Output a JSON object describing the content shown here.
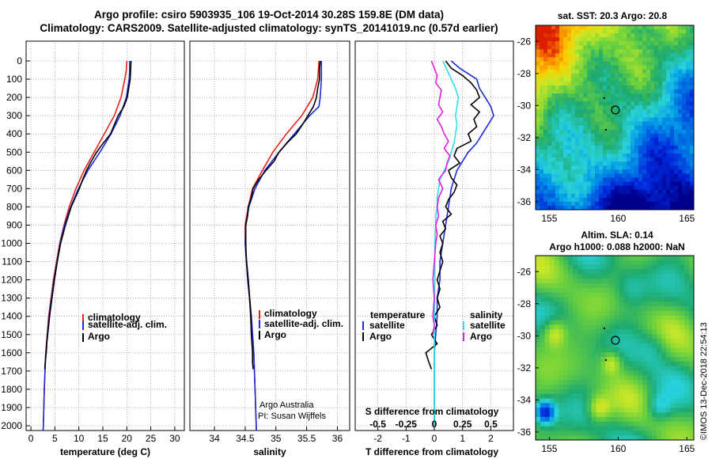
{
  "titles": {
    "line1": "Argo profile: csiro 5903935_106 19-Oct-2014 30.28S 159.8E (DM data)",
    "line2": "Climatology: CARS2009. Satellite-adjusted climatology: synTS_20141019.nc (0.57d earlier)"
  },
  "colors": {
    "climatology": "#e8221b",
    "satellite": "#1c2bd6",
    "argo": "#000000",
    "salinity_sat": "#33e0e6",
    "salinity_argo": "#e020e0"
  },
  "chart_data": [
    {
      "type": "line",
      "name": "temperature",
      "xlabel": "temperature (deg C)",
      "ylabel": "depth",
      "xlim": [
        -1,
        32
      ],
      "ylim": [
        2050,
        0
      ],
      "xticks": [
        "0",
        "5",
        "10",
        "15",
        "20",
        "25",
        "30"
      ],
      "xtick_values": [
        0,
        5,
        10,
        15,
        20,
        25,
        30
      ],
      "yticks": [
        "0",
        "100",
        "200",
        "300",
        "400",
        "500",
        "600",
        "700",
        "800",
        "900",
        "1000",
        "1100",
        "1200",
        "1300",
        "1400",
        "1500",
        "1600",
        "1700",
        "1800",
        "1900",
        "2000"
      ],
      "ytick_values": [
        0,
        100,
        200,
        300,
        400,
        500,
        600,
        700,
        800,
        900,
        1000,
        1100,
        1200,
        1300,
        1400,
        1500,
        1600,
        1700,
        1800,
        1900,
        2000
      ],
      "legend": [
        "climatology",
        "satellite-adj. clim.",
        "Argo"
      ],
      "series": [
        {
          "name": "climatology",
          "color": "#e8221b",
          "depth": [
            0,
            50,
            100,
            200,
            300,
            400,
            500,
            600,
            700,
            800,
            900,
            1000,
            1200,
            1400,
            1600,
            1800,
            2000,
            2050
          ],
          "values": [
            20.0,
            19.9,
            19.6,
            18.8,
            17.4,
            15.3,
            13.2,
            11.1,
            9.4,
            8.0,
            6.9,
            6.0,
            4.7,
            3.7,
            3.1,
            2.8,
            2.6,
            2.5
          ]
        },
        {
          "name": "satellite-adj. clim.",
          "color": "#1c2bd6",
          "depth": [
            0,
            50,
            100,
            200,
            300,
            400,
            500,
            600,
            700,
            800,
            900,
            1000,
            1200,
            1400,
            1600,
            1800,
            2000,
            2050
          ],
          "values": [
            20.6,
            20.6,
            20.5,
            19.9,
            18.6,
            16.7,
            14.4,
            11.9,
            9.9,
            8.3,
            7.0,
            6.1,
            4.8,
            3.8,
            3.1,
            2.8,
            2.6,
            2.5
          ]
        },
        {
          "name": "Argo",
          "color": "#000000",
          "depth": [
            0,
            50,
            100,
            150,
            200,
            250,
            300,
            350,
            400,
            450,
            500,
            550,
            600,
            650,
            700,
            800,
            900,
            1000,
            1100,
            1200,
            1300,
            1400,
            1500,
            1550,
            1600,
            1650,
            1690
          ],
          "values": [
            20.9,
            20.8,
            20.7,
            20.4,
            20.1,
            19.4,
            18.2,
            17.4,
            16.6,
            15.1,
            13.7,
            12.6,
            11.6,
            10.8,
            10.1,
            8.4,
            7.2,
            6.2,
            5.5,
            4.9,
            4.4,
            3.9,
            3.5,
            3.3,
            3.2,
            3.0,
            2.9
          ]
        }
      ]
    },
    {
      "type": "line",
      "name": "salinity",
      "xlabel": "salinity",
      "xlim": [
        33.6,
        36.2
      ],
      "ylim": [
        2050,
        0
      ],
      "xticks": [
        "34",
        "34.5",
        "35",
        "35.5",
        "36"
      ],
      "xtick_values": [
        34,
        34.5,
        35,
        35.5,
        36
      ],
      "legend": [
        "climatology",
        "satellite-adj. clim.",
        "Argo"
      ],
      "annotation": [
        "Argo Australia",
        "PI: Susan Wijffels"
      ],
      "series": [
        {
          "name": "climatology",
          "color": "#e8221b",
          "depth": [
            0,
            100,
            200,
            300,
            400,
            500,
            600,
            700,
            800,
            900,
            1000,
            1200,
            1400,
            1600,
            1800,
            2000,
            2050
          ],
          "values": [
            35.7,
            35.68,
            35.6,
            35.42,
            35.17,
            34.95,
            34.78,
            34.62,
            34.55,
            34.5,
            34.5,
            34.55,
            34.6,
            34.64,
            34.66,
            34.68,
            34.68
          ]
        },
        {
          "name": "satellite-adj. clim.",
          "color": "#1c2bd6",
          "depth": [
            0,
            100,
            200,
            250,
            300,
            400,
            500,
            600,
            700,
            800,
            900,
            1000,
            1200,
            1400,
            1600,
            1800,
            2000,
            2050
          ],
          "values": [
            35.74,
            35.74,
            35.72,
            35.7,
            35.55,
            35.3,
            35.05,
            34.82,
            34.66,
            34.56,
            34.51,
            34.5,
            34.54,
            34.6,
            34.64,
            34.66,
            34.68,
            34.68
          ]
        },
        {
          "name": "Argo",
          "color": "#000000",
          "depth": [
            0,
            50,
            100,
            150,
            200,
            250,
            300,
            350,
            400,
            450,
            500,
            550,
            600,
            650,
            700,
            750,
            800,
            850,
            900,
            1000,
            1100,
            1200,
            1300,
            1400,
            1500,
            1550,
            1600,
            1650,
            1690
          ],
          "values": [
            35.72,
            35.71,
            35.71,
            35.68,
            35.66,
            35.61,
            35.52,
            35.43,
            35.33,
            35.18,
            35.05,
            34.97,
            34.84,
            34.72,
            34.63,
            34.6,
            34.55,
            34.54,
            34.51,
            34.51,
            34.52,
            34.55,
            34.57,
            34.59,
            34.6,
            34.61,
            34.62,
            34.62,
            34.63
          ]
        }
      ]
    },
    {
      "type": "line",
      "name": "differences",
      "xlabel": "T difference from climatology",
      "xlabel_top": "S difference from climatology",
      "xlim": [
        -2.8,
        2.8
      ],
      "ylim": [
        2050,
        0
      ],
      "xticks": [
        "-2",
        "-1",
        "0",
        "1",
        "2"
      ],
      "xtick_values": [
        -2,
        -1,
        0,
        1,
        2
      ],
      "sticks": [
        "-0.5",
        "-0.25",
        "0",
        "0.25",
        "0.5"
      ],
      "stick_positions_T": [
        -2,
        -1,
        0,
        1,
        2
      ],
      "legend_temperature_title": "temperature",
      "legend_salinity_title": "salinity",
      "legend": [
        "satellite",
        "Argo"
      ],
      "series": [
        {
          "name": "T satellite",
          "color": "#1c2bd6",
          "depth": [
            0,
            40,
            80,
            100,
            150,
            200,
            250,
            300,
            350,
            400,
            450,
            500,
            550,
            600,
            700,
            800,
            900,
            1000,
            1100,
            1200,
            1300,
            1400,
            1600,
            1800,
            2000
          ],
          "values": [
            0.6,
            0.9,
            1.3,
            1.5,
            1.6,
            1.8,
            2.0,
            2.1,
            1.9,
            1.7,
            1.5,
            1.2,
            1.0,
            0.8,
            0.6,
            0.5,
            0.4,
            0.3,
            0.2,
            0.2,
            0.1,
            0.1,
            0.0,
            0.0,
            0.0
          ]
        },
        {
          "name": "T Argo",
          "color": "#000000",
          "depth": [
            0,
            40,
            80,
            120,
            160,
            200,
            240,
            280,
            320,
            360,
            400,
            440,
            480,
            520,
            560,
            600,
            640,
            680,
            720,
            760,
            800,
            840,
            880,
            920,
            960,
            1000,
            1050,
            1100,
            1150,
            1200,
            1250,
            1300,
            1350,
            1400,
            1450,
            1500,
            1550,
            1600,
            1650,
            1690
          ],
          "values": [
            0.4,
            0.6,
            1.0,
            1.3,
            1.5,
            1.6,
            1.3,
            1.6,
            1.4,
            1.5,
            1.2,
            1.3,
            0.8,
            0.7,
            0.9,
            0.5,
            0.6,
            0.8,
            0.7,
            0.5,
            0.4,
            0.6,
            0.3,
            0.4,
            0.2,
            0.3,
            0.2,
            0.3,
            0.2,
            0.1,
            0.2,
            0.1,
            0.2,
            0.0,
            0.1,
            -0.1,
            0.1,
            -0.3,
            -0.2,
            -0.1
          ]
        },
        {
          "name": "S satellite",
          "color": "#33e0e6",
          "depth": [
            0,
            50,
            100,
            150,
            200,
            250,
            300,
            350,
            400,
            450,
            500,
            550,
            600,
            650,
            700,
            750,
            800,
            850,
            900,
            1000,
            1200,
            1400,
            1600,
            1800,
            2000
          ],
          "values": [
            0.3,
            0.45,
            0.6,
            0.75,
            0.85,
            0.8,
            0.75,
            0.8,
            0.75,
            0.7,
            0.6,
            0.5,
            0.35,
            0.2,
            0.15,
            0.1,
            0.1,
            0.05,
            0.05,
            0.02,
            0.02,
            0.0,
            0.0,
            0.0,
            0.0
          ]
        },
        {
          "name": "S Argo",
          "color": "#e020e0",
          "depth": [
            0,
            40,
            80,
            120,
            160,
            200,
            240,
            280,
            320,
            360,
            400,
            440,
            480,
            520,
            560,
            600,
            650,
            700,
            750,
            800,
            850,
            900,
            950,
            1000,
            1100,
            1200,
            1300,
            1400,
            1450,
            1500
          ],
          "values": [
            -0.1,
            0.0,
            0.1,
            0.05,
            0.25,
            0.2,
            0.15,
            0.3,
            0.1,
            0.25,
            0.35,
            0.5,
            0.35,
            0.55,
            0.45,
            0.4,
            0.15,
            0.3,
            0.15,
            0.1,
            0.15,
            0.05,
            0.1,
            0.05,
            0.0,
            -0.05,
            0.0,
            -0.05,
            0.0,
            -0.05
          ]
        }
      ]
    }
  ],
  "sst_map": {
    "title": "sat. SST: 20.3 Argo: 20.8",
    "xticks": [
      "155",
      "160",
      "165"
    ],
    "yticks": [
      "-26",
      "-28",
      "-30",
      "-32",
      "-34",
      "-36"
    ],
    "xlim": [
      154,
      165.5
    ],
    "ylim": [
      -36.5,
      -25
    ]
  },
  "sla_map": {
    "title1": "Altim. SLA: 0.14",
    "title2": "Argo h1000: 0.088 h2000: NaN",
    "xticks": [
      "155",
      "160",
      "165"
    ],
    "yticks": [
      "-26",
      "-28",
      "-30",
      "-32",
      "-34",
      "-36"
    ],
    "xlim": [
      154,
      165.5
    ],
    "ylim": [
      -36.5,
      -25
    ]
  },
  "float_position": {
    "lon": 159.8,
    "lat": -30.28
  },
  "watermark": "©IMOS 13-Dec-2018 22:54:13"
}
